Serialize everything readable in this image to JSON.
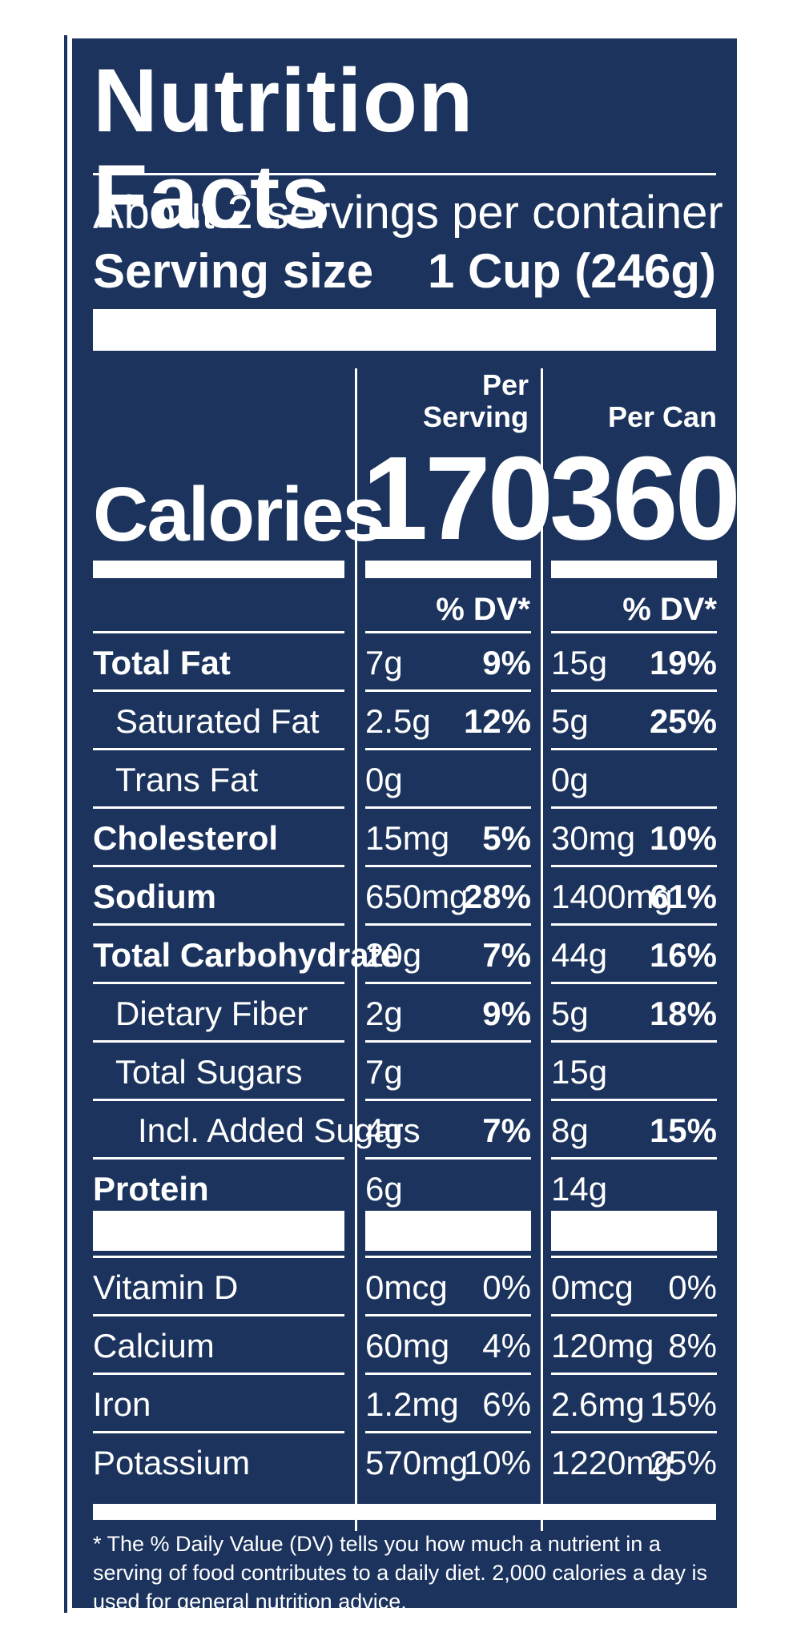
{
  "label": {
    "title": "Nutrition Facts",
    "servings_per_container": "About 2 servings per container",
    "serving_size_label": "Serving size",
    "serving_size_value": "1 Cup (246g)",
    "calories_label": "Calories",
    "col1_header_line1": "Per",
    "col1_header_line2": "Serving",
    "col2_header": "Per Can",
    "col1_calories": "170",
    "col2_calories": "360",
    "dv_header_col1": "% DV*",
    "dv_header_col2": "% DV*",
    "rows": [
      {
        "name": "Total Fat",
        "s_amt": "7g",
        "s_dv": "9%",
        "c_amt": "15g",
        "c_dv": "19%"
      },
      {
        "name": "Saturated Fat",
        "s_amt": "2.5g",
        "s_dv": "12%",
        "c_amt": "5g",
        "c_dv": "25%"
      },
      {
        "name": "Trans Fat",
        "s_amt": "0g",
        "s_dv": "",
        "c_amt": "0g",
        "c_dv": ""
      },
      {
        "name": "Cholesterol",
        "s_amt": "15mg",
        "s_dv": "5%",
        "c_amt": "30mg",
        "c_dv": "10%"
      },
      {
        "name": "Sodium",
        "s_amt": "650mg",
        "s_dv": "28%",
        "c_amt": "1400mg",
        "c_dv": "61%"
      },
      {
        "name": "Total Carbohydrate",
        "s_amt": "20g",
        "s_dv": "7%",
        "c_amt": "44g",
        "c_dv": "16%"
      },
      {
        "name": "Dietary Fiber",
        "s_amt": "2g",
        "s_dv": "9%",
        "c_amt": "5g",
        "c_dv": "18%"
      },
      {
        "name": "Total Sugars",
        "s_amt": "7g",
        "s_dv": "",
        "c_amt": "15g",
        "c_dv": ""
      },
      {
        "name": "Incl. Added Sugars",
        "s_amt": "4g",
        "s_dv": "7%",
        "c_amt": "8g",
        "c_dv": "15%"
      },
      {
        "name": "Protein",
        "s_amt": "6g",
        "s_dv": "",
        "c_amt": "14g",
        "c_dv": ""
      }
    ],
    "micros": [
      {
        "name": "Vitamin D",
        "s_amt": "0mcg",
        "s_dv": "0%",
        "c_amt": "0mcg",
        "c_dv": "0%"
      },
      {
        "name": "Calcium",
        "s_amt": "60mg",
        "s_dv": "4%",
        "c_amt": "120mg",
        "c_dv": "8%"
      },
      {
        "name": "Iron",
        "s_amt": "1.2mg",
        "s_dv": "6%",
        "c_amt": "2.6mg",
        "c_dv": "15%"
      },
      {
        "name": "Potassium",
        "s_amt": "570mg",
        "s_dv": "10%",
        "c_amt": "1220mg",
        "c_dv": "25%"
      }
    ],
    "footnote": "* The % Daily Value (DV) tells you how much a nutrient in a serving of food contributes to a daily diet. 2,000 calories a day is used for general nutrition advice."
  },
  "colors": {
    "background": "#1b335d",
    "text": "#ffffff"
  }
}
